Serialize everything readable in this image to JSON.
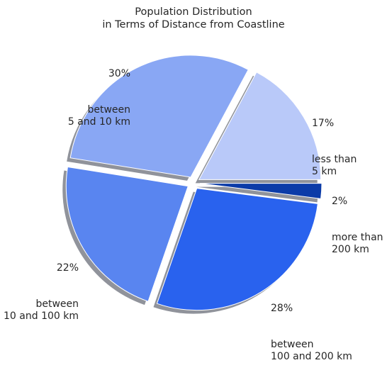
{
  "chart_data": {
    "type": "pie",
    "title": "Population Distribution\nin Terms of Distance from Coastline",
    "slices": [
      {
        "pct_label": "17%",
        "text": "less than\n5 km",
        "value": 17,
        "color": "#b9c9f9"
      },
      {
        "pct_label": "30%",
        "text": "between\n5 and 10 km",
        "value": 30,
        "color": "#89a7f4"
      },
      {
        "pct_label": "22%",
        "text": "between\n10 and 100 km",
        "value": 22,
        "color": "#5985f0"
      },
      {
        "pct_label": "28%",
        "text": "between\n100 and 200 km",
        "value": 28,
        "color": "#2962ee"
      },
      {
        "pct_label": "2%",
        "text": "more than\n200 km",
        "value": 2,
        "color": "#0b3ba8"
      }
    ],
    "exploded": true,
    "shadow": true,
    "start_angle_deg": 0
  }
}
